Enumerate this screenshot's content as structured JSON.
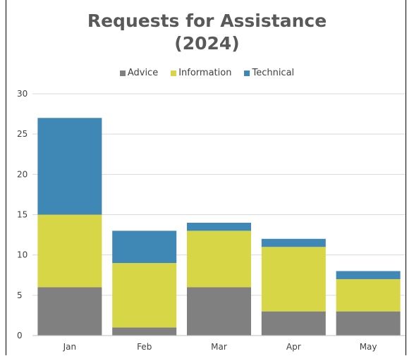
{
  "chart_data": {
    "type": "bar",
    "stacked": true,
    "title_line1": "Requests for Assistance",
    "title_line2": "(2024)",
    "xlabel": "",
    "ylabel": "",
    "categories": [
      "Jan",
      "Feb",
      "Mar",
      "Apr",
      "May"
    ],
    "ylim": [
      0,
      30
    ],
    "yticks": [
      "0",
      "5",
      "10",
      "15",
      "20",
      "25",
      "30"
    ],
    "grid": true,
    "legend_position": "top",
    "series": [
      {
        "name": "Advice",
        "color": "#808080",
        "values": [
          6,
          1,
          6,
          3,
          3
        ]
      },
      {
        "name": "Information",
        "color": "#d7d647",
        "values": [
          9,
          8,
          7,
          8,
          4
        ]
      },
      {
        "name": "Technical",
        "color": "#3f87b4",
        "values": [
          12,
          4,
          1,
          1,
          1
        ]
      }
    ]
  }
}
